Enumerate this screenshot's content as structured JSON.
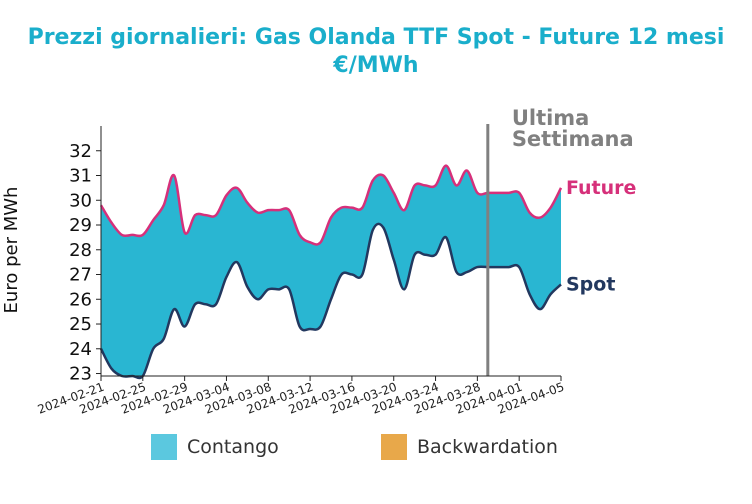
{
  "chart_data": {
    "type": "area",
    "title": "Prezzi giornalieri: Gas Olanda TTF Spot - Future 12 mesi",
    "subtitle": "€/MWh",
    "ylabel": "Euro per MWh",
    "xlabel": "",
    "ylim": [
      22.9,
      33
    ],
    "yticks": [
      23,
      24,
      25,
      26,
      27,
      28,
      29,
      30,
      31,
      32
    ],
    "x_start": "2024-02-21",
    "x_end": "2024-04-05",
    "xticks": [
      "2024-02-21",
      "2024-02-25",
      "2024-02-29",
      "2024-03-04",
      "2024-03-08",
      "2024-03-12",
      "2024-03-16",
      "2024-03-20",
      "2024-03-24",
      "2024-03-28",
      "2024-04-01",
      "2024-04-05"
    ],
    "series": [
      {
        "name": "Future",
        "color": "#d6307a",
        "x": [
          "2024-02-21",
          "2024-02-22",
          "2024-02-23",
          "2024-02-24",
          "2024-02-25",
          "2024-02-26",
          "2024-02-27",
          "2024-02-28",
          "2024-02-29",
          "2024-03-01",
          "2024-03-02",
          "2024-03-03",
          "2024-03-04",
          "2024-03-05",
          "2024-03-06",
          "2024-03-07",
          "2024-03-08",
          "2024-03-09",
          "2024-03-10",
          "2024-03-11",
          "2024-03-12",
          "2024-03-13",
          "2024-03-14",
          "2024-03-15",
          "2024-03-16",
          "2024-03-17",
          "2024-03-18",
          "2024-03-19",
          "2024-03-20",
          "2024-03-21",
          "2024-03-22",
          "2024-03-23",
          "2024-03-24",
          "2024-03-25",
          "2024-03-26",
          "2024-03-27",
          "2024-03-28",
          "2024-03-29",
          "2024-03-30",
          "2024-03-31",
          "2024-04-01",
          "2024-04-02",
          "2024-04-03",
          "2024-04-04",
          "2024-04-05"
        ],
        "values": [
          29.8,
          29.1,
          28.6,
          28.6,
          28.6,
          29.2,
          29.8,
          31.0,
          28.7,
          29.4,
          29.4,
          29.4,
          30.2,
          30.5,
          29.9,
          29.5,
          29.6,
          29.6,
          29.6,
          28.6,
          28.3,
          28.3,
          29.3,
          29.7,
          29.7,
          29.7,
          30.8,
          31.0,
          30.3,
          29.6,
          30.6,
          30.6,
          30.6,
          31.4,
          30.6,
          31.2,
          30.3,
          30.3,
          30.3,
          30.3,
          30.3,
          29.5,
          29.3,
          29.7,
          30.5
        ],
        "label": "Future"
      },
      {
        "name": "Spot",
        "color": "#22385f",
        "x": [
          "2024-02-21",
          "2024-02-22",
          "2024-02-23",
          "2024-02-24",
          "2024-02-25",
          "2024-02-26",
          "2024-02-27",
          "2024-02-28",
          "2024-02-29",
          "2024-03-01",
          "2024-03-02",
          "2024-03-03",
          "2024-03-04",
          "2024-03-05",
          "2024-03-06",
          "2024-03-07",
          "2024-03-08",
          "2024-03-09",
          "2024-03-10",
          "2024-03-11",
          "2024-03-12",
          "2024-03-13",
          "2024-03-14",
          "2024-03-15",
          "2024-03-16",
          "2024-03-17",
          "2024-03-18",
          "2024-03-19",
          "2024-03-20",
          "2024-03-21",
          "2024-03-22",
          "2024-03-23",
          "2024-03-24",
          "2024-03-25",
          "2024-03-26",
          "2024-03-27",
          "2024-03-28",
          "2024-03-29",
          "2024-03-30",
          "2024-03-31",
          "2024-04-01",
          "2024-04-02",
          "2024-04-03",
          "2024-04-04",
          "2024-04-05"
        ],
        "values": [
          24.0,
          23.2,
          22.9,
          22.9,
          22.9,
          24.0,
          24.4,
          25.6,
          24.9,
          25.8,
          25.8,
          25.8,
          26.9,
          27.5,
          26.5,
          26.0,
          26.4,
          26.4,
          26.4,
          24.9,
          24.8,
          24.9,
          26.0,
          27.0,
          27.0,
          27.0,
          28.8,
          28.9,
          27.6,
          26.4,
          27.8,
          27.8,
          27.8,
          28.5,
          27.1,
          27.1,
          27.3,
          27.3,
          27.3,
          27.3,
          27.3,
          26.2,
          25.6,
          26.2,
          26.6
        ],
        "label": "Spot"
      }
    ],
    "fill": {
      "contango_color": "#29b6d2",
      "backwardation_color": "#e8a84a"
    },
    "marker": {
      "x": "2024-03-29",
      "color": "#808080",
      "label": "Ultima\nSettimana",
      "label_lines": [
        "Ultima",
        "Settimana"
      ]
    },
    "legend": {
      "placement": "bottom",
      "items": [
        {
          "label": "Contango",
          "color": "#5bc8df"
        },
        {
          "label": "Backwardation",
          "color": "#e8a84a"
        }
      ]
    },
    "grid": false
  }
}
